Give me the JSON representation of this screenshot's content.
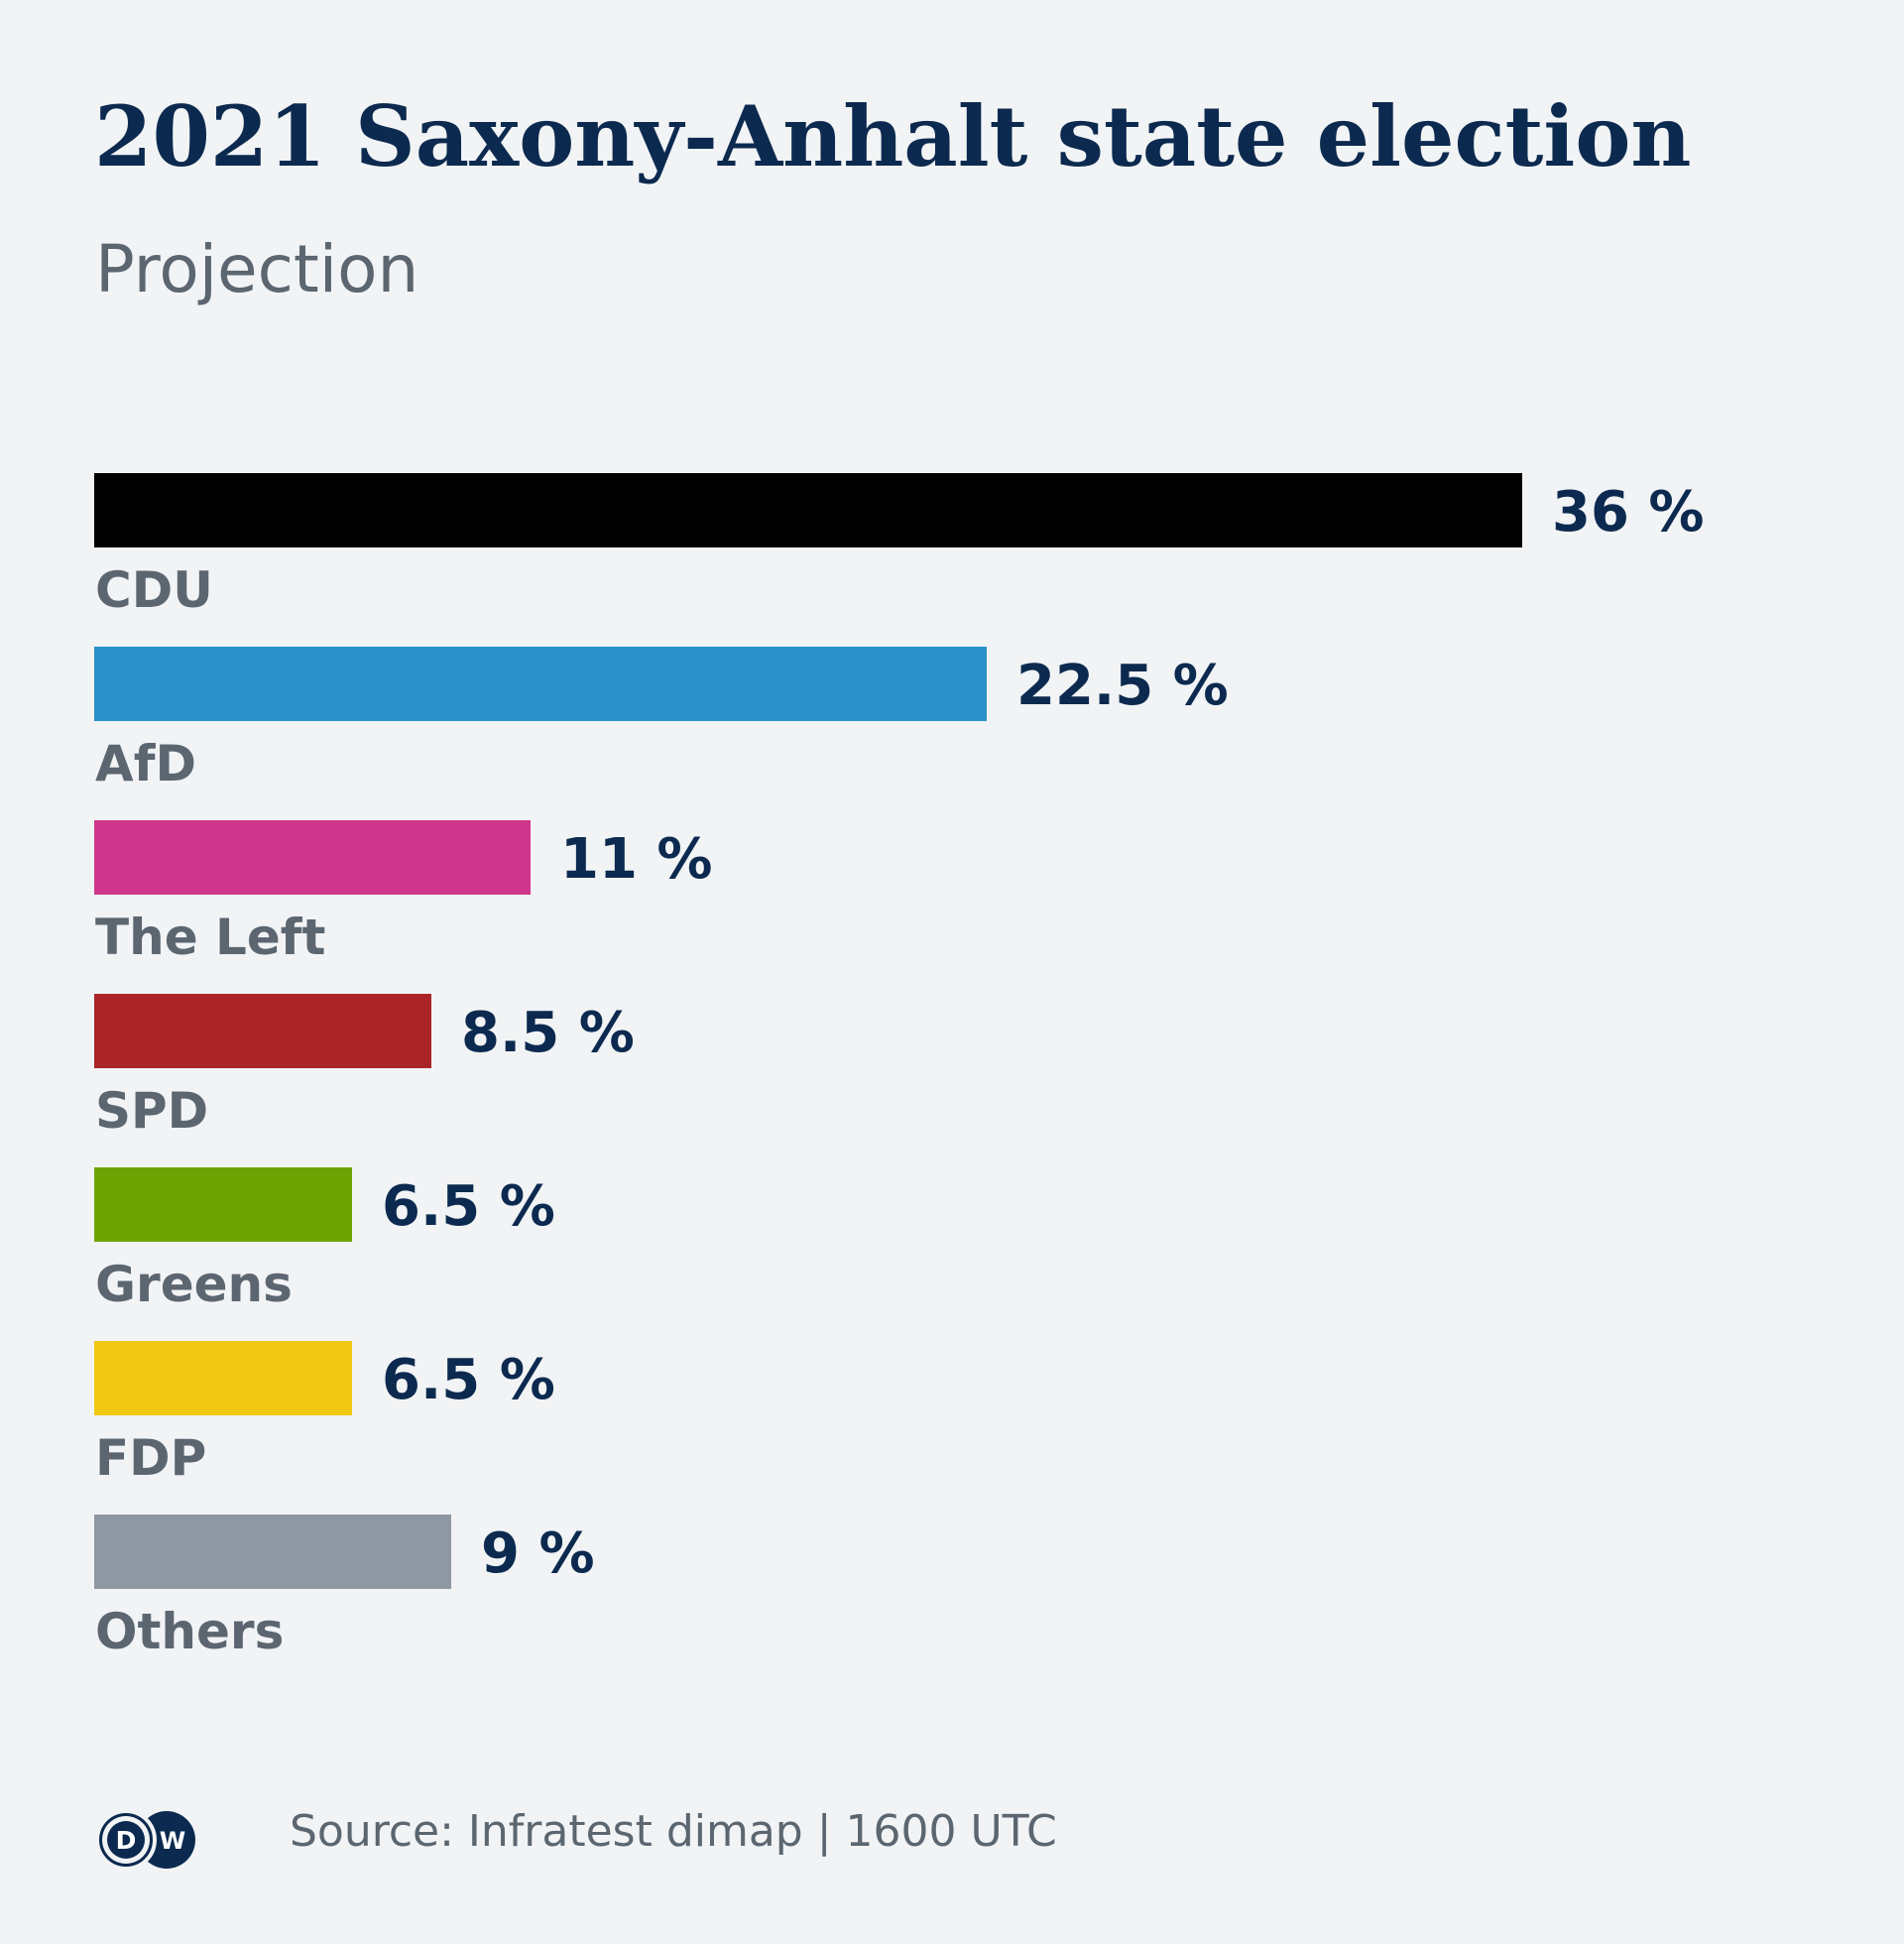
{
  "chart_data": {
    "type": "bar",
    "orientation": "horizontal",
    "title": "2021 Saxony-Anhalt state election",
    "subtitle": "Projection",
    "unit": "%",
    "categories": [
      "CDU",
      "AfD",
      "The Left",
      "SPD",
      "Greens",
      "FDP",
      "Others"
    ],
    "values": [
      36,
      22.5,
      11,
      8.5,
      6.5,
      6.5,
      9
    ],
    "value_labels": [
      "36 %",
      "22.5 %",
      "11 %",
      "8.5 %",
      "6.5 %",
      "6.5 %",
      "9 %"
    ],
    "colors": [
      "#000000",
      "#2b91c8",
      "#cf368b",
      "#ab2428",
      "#6ca303",
      "#f0c814",
      "#8f97a2"
    ],
    "xlim": [
      0,
      36
    ],
    "grid": false,
    "legend": "none"
  },
  "footer": {
    "logo_text": "DW",
    "source": "Source: Infratest dimap | 1600 UTC"
  },
  "colors": {
    "background": "#f1f3f5",
    "title": "#0c2a4f",
    "label": "#5b6670"
  }
}
